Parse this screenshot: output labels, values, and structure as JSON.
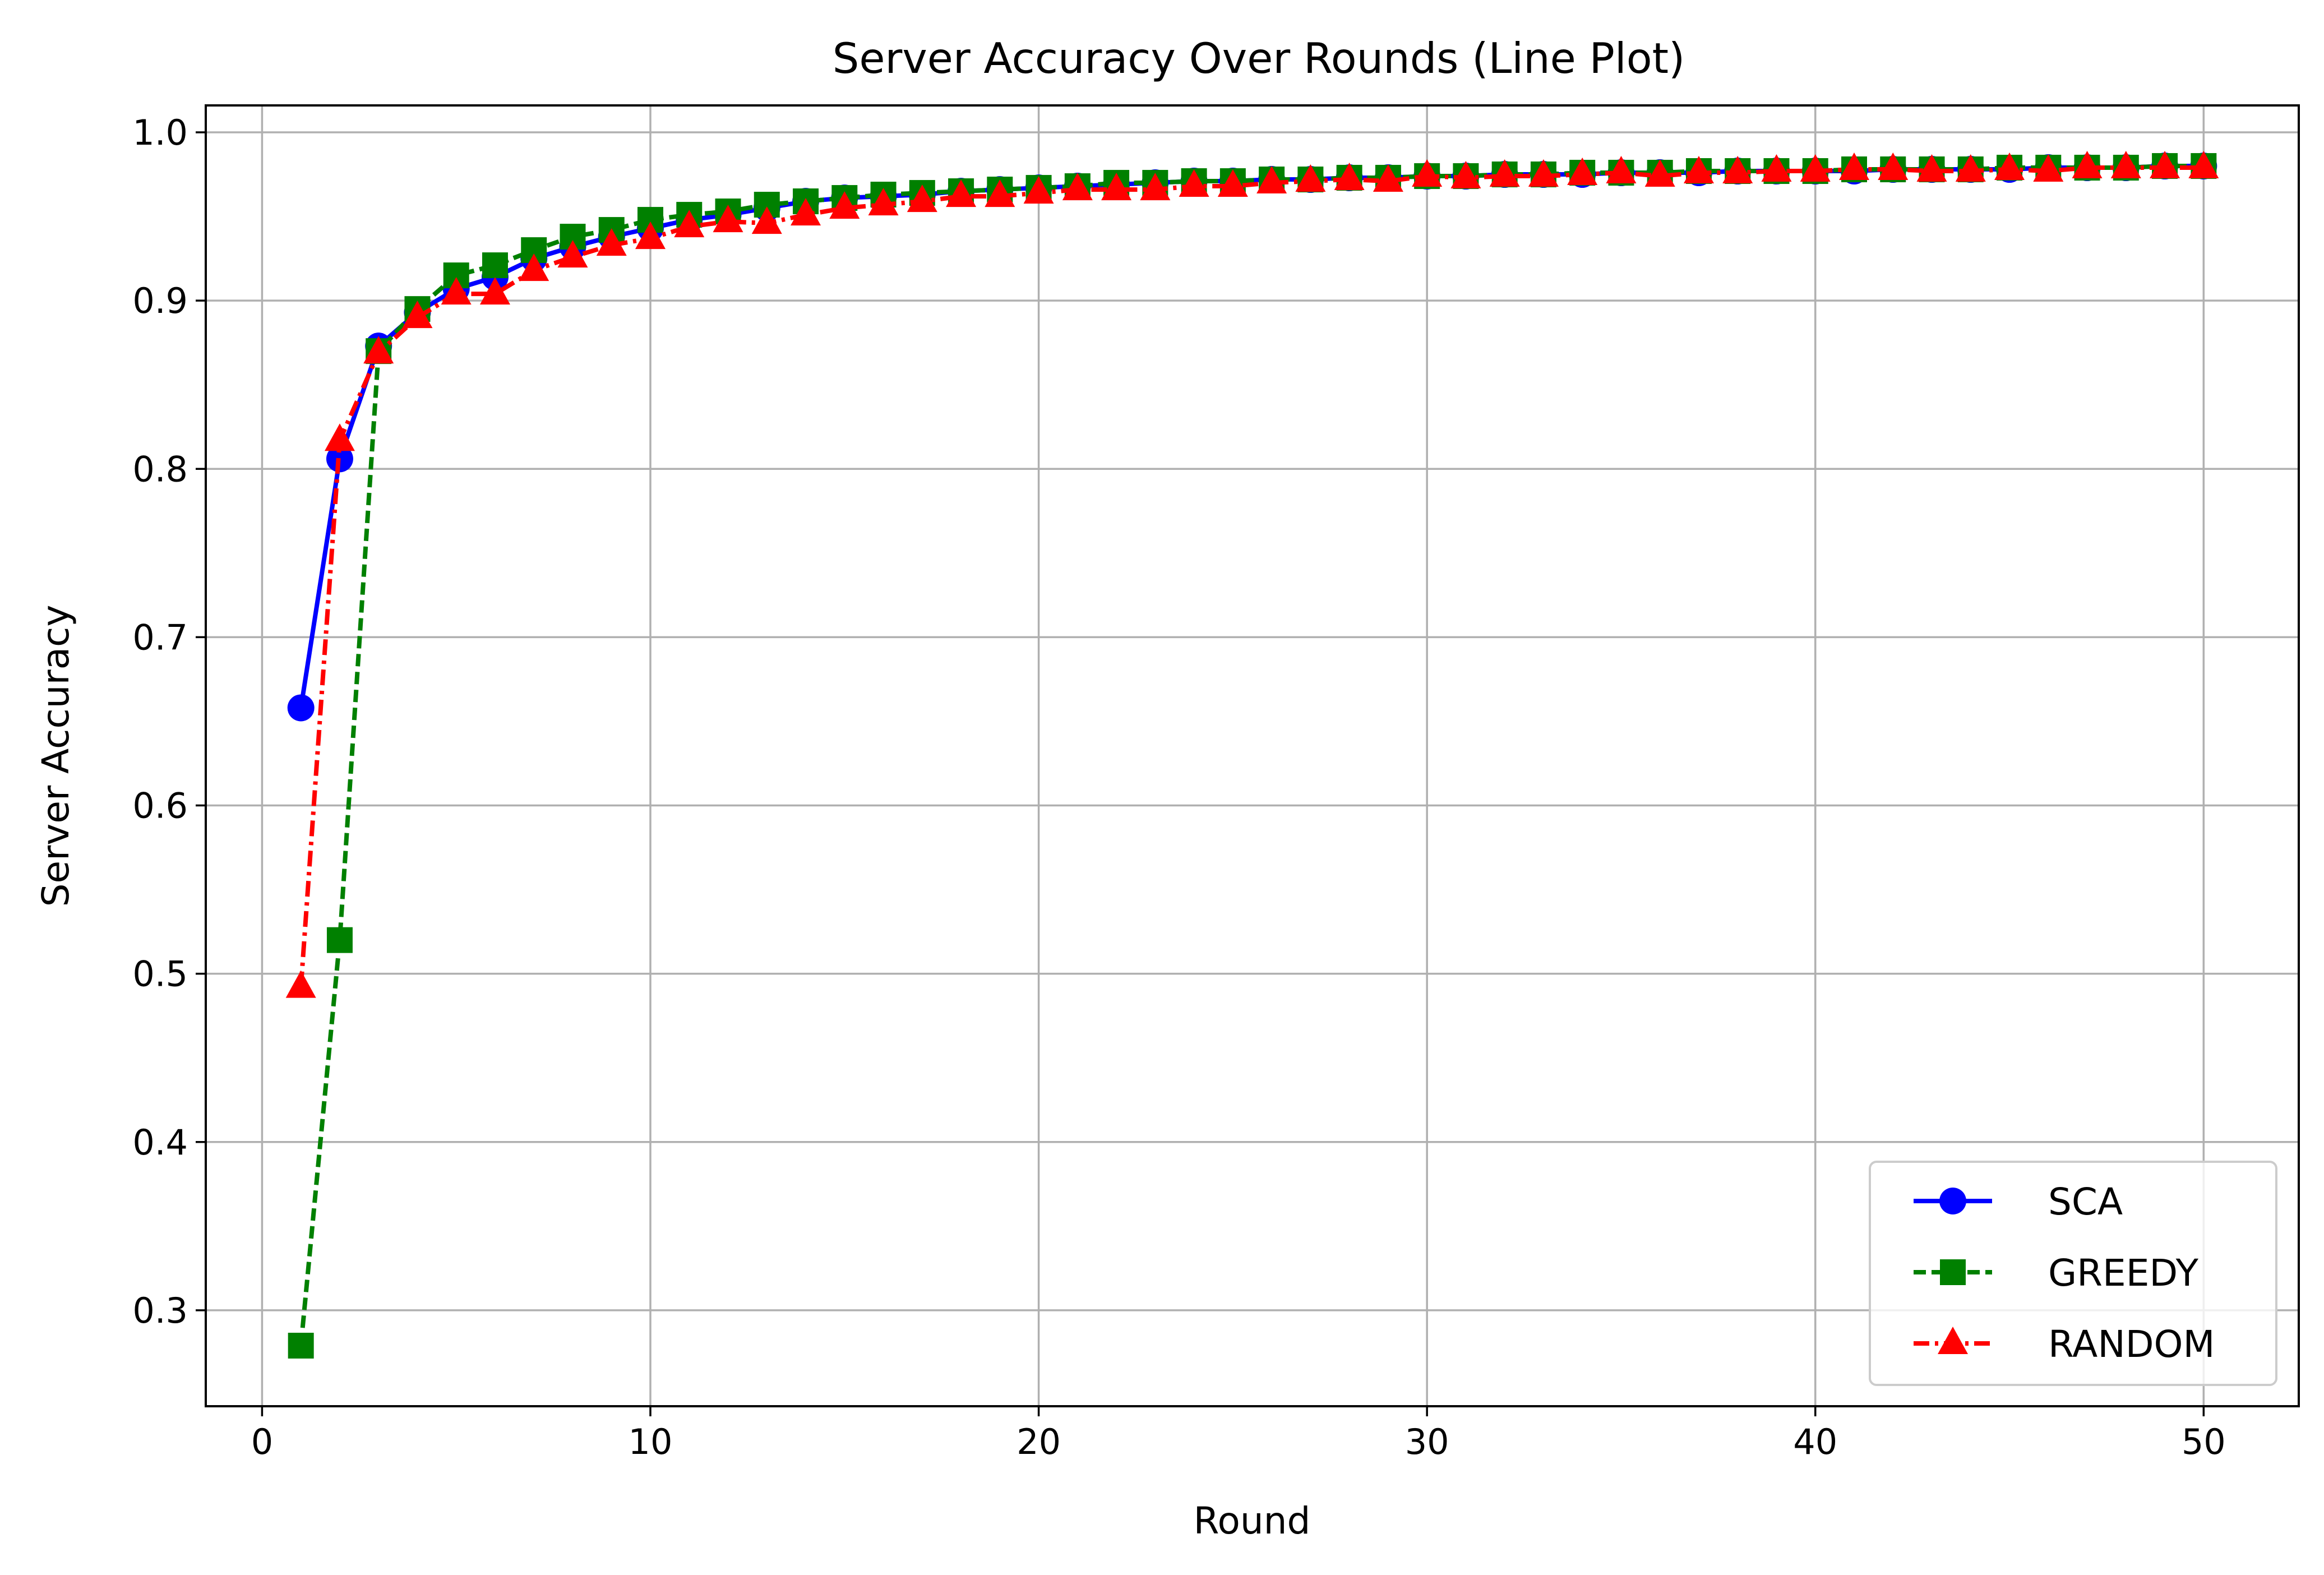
{
  "chart_data": {
    "type": "line",
    "title": "Server Accuracy Over Rounds (Line Plot)",
    "xlabel": "Round",
    "ylabel": "Server Accuracy",
    "xlim": [
      -1.45,
      52.45
    ],
    "ylim": [
      0.243,
      1.016
    ],
    "xticks": [
      "0",
      "10",
      "20",
      "30",
      "40",
      "50"
    ],
    "yticks": [
      "0.3",
      "0.4",
      "0.5",
      "0.6",
      "0.7",
      "0.8",
      "0.9",
      "1.0"
    ],
    "grid": true,
    "legend_position": "lower right",
    "x": [
      1,
      2,
      3,
      4,
      5,
      6,
      7,
      8,
      9,
      10,
      11,
      12,
      13,
      14,
      15,
      16,
      17,
      18,
      19,
      20,
      21,
      22,
      23,
      24,
      25,
      26,
      27,
      28,
      29,
      30,
      31,
      32,
      33,
      34,
      35,
      36,
      37,
      38,
      39,
      40,
      41,
      42,
      43,
      44,
      45,
      46,
      47,
      48,
      49,
      50
    ],
    "series": [
      {
        "name": "SCA",
        "color": "#0000ff",
        "linestyle": "solid",
        "marker": "circle",
        "values": [
          0.658,
          0.806,
          0.873,
          0.893,
          0.907,
          0.914,
          0.925,
          0.932,
          0.938,
          0.943,
          0.948,
          0.951,
          0.955,
          0.959,
          0.961,
          0.962,
          0.963,
          0.965,
          0.966,
          0.967,
          0.968,
          0.969,
          0.97,
          0.971,
          0.971,
          0.972,
          0.972,
          0.973,
          0.973,
          0.974,
          0.974,
          0.975,
          0.975,
          0.975,
          0.976,
          0.976,
          0.976,
          0.977,
          0.977,
          0.977,
          0.977,
          0.978,
          0.978,
          0.978,
          0.978,
          0.979,
          0.979,
          0.979,
          0.98,
          0.98
        ]
      },
      {
        "name": "GREEDY",
        "color": "#008000",
        "linestyle": "dashed",
        "marker": "square",
        "values": [
          0.279,
          0.52,
          0.87,
          0.895,
          0.915,
          0.921,
          0.93,
          0.938,
          0.942,
          0.948,
          0.951,
          0.953,
          0.957,
          0.959,
          0.961,
          0.963,
          0.964,
          0.965,
          0.966,
          0.967,
          0.968,
          0.97,
          0.97,
          0.971,
          0.971,
          0.972,
          0.972,
          0.973,
          0.973,
          0.974,
          0.974,
          0.975,
          0.975,
          0.976,
          0.976,
          0.976,
          0.977,
          0.977,
          0.977,
          0.977,
          0.978,
          0.978,
          0.978,
          0.978,
          0.979,
          0.979,
          0.979,
          0.979,
          0.98,
          0.98
        ]
      },
      {
        "name": "RANDOM",
        "color": "#ff0000",
        "linestyle": "dashdot",
        "marker": "triangle",
        "values": [
          0.492,
          0.817,
          0.869,
          0.89,
          0.904,
          0.904,
          0.918,
          0.926,
          0.933,
          0.937,
          0.944,
          0.947,
          0.946,
          0.951,
          0.955,
          0.957,
          0.959,
          0.962,
          0.962,
          0.964,
          0.966,
          0.966,
          0.966,
          0.968,
          0.968,
          0.97,
          0.971,
          0.972,
          0.971,
          0.974,
          0.973,
          0.974,
          0.974,
          0.975,
          0.976,
          0.974,
          0.976,
          0.976,
          0.977,
          0.977,
          0.978,
          0.978,
          0.977,
          0.977,
          0.978,
          0.977,
          0.979,
          0.979,
          0.979,
          0.979
        ]
      }
    ]
  }
}
